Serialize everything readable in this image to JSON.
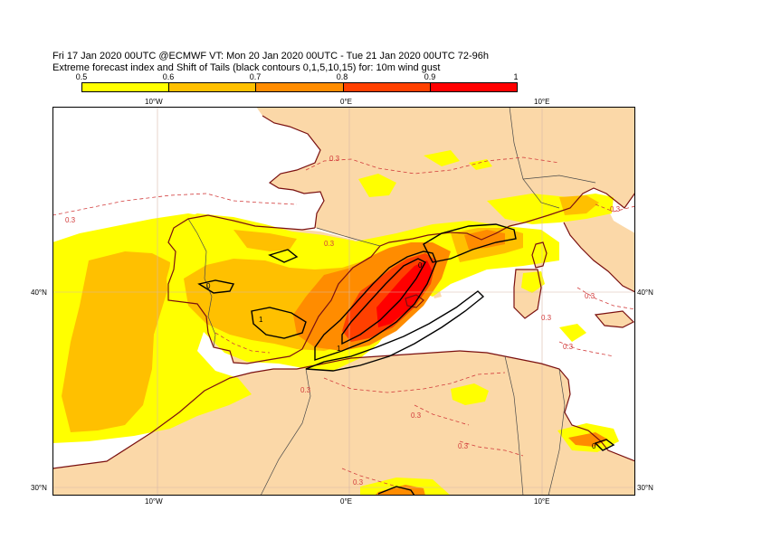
{
  "title_line1": "Fri 17 Jan 2020 00UTC @ECMWF VT: Mon 20 Jan 2020 00UTC - Tue 21 Jan 2020 00UTC  72-96h",
  "title_line2": "Extreme forecast index and Shift of Tails (black contours 0,1,5,10,15) for: 10m wind gust",
  "legend": {
    "labels": [
      "0.5",
      "0.6",
      "0.7",
      "0.8",
      "0.9",
      "1"
    ],
    "colors": [
      "#ffff00",
      "#ffc000",
      "#ff8c00",
      "#ff4000",
      "#ff0000"
    ]
  },
  "map": {
    "colors": {
      "land": "#fbd8a8",
      "sea": "#ffffff",
      "coast": "#7a1010",
      "border": "#4a4a4a",
      "grid": "#d8b8a8",
      "efi03": "#d23c3c",
      "sot": "#000000"
    },
    "top_longitude_labels": [
      "10°W",
      "0°E",
      "10°E"
    ],
    "bottom_longitude_labels": [
      "10°W",
      "0°E",
      "10°E"
    ],
    "left_latitude_labels": [
      "40°N",
      "30°N"
    ],
    "right_latitude_labels": [
      "40°N",
      "30°N"
    ],
    "efi_contour_labels": [
      "0.3",
      "0.3",
      "0.3",
      "0.3",
      "0.3",
      "0.3",
      "0.3",
      "0.3",
      "0.3",
      "0.3",
      "0.3"
    ],
    "sot_contour_labels": [
      "0",
      "0",
      "0",
      "1",
      "1"
    ]
  }
}
